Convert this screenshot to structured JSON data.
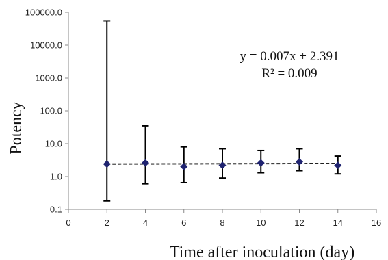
{
  "chart_data": {
    "type": "scatter",
    "xlabel": "Time after inoculation (day)",
    "ylabel": "Potency",
    "xlim": [
      0,
      16
    ],
    "ylim": [
      0.1,
      100000
    ],
    "yscale": "log",
    "x_ticks": [
      "0",
      "2",
      "4",
      "6",
      "8",
      "10",
      "12",
      "14",
      "16"
    ],
    "y_ticks": [
      "0.1",
      "1.0",
      "10.0",
      "100.0",
      "1000.0",
      "10000.0",
      "100000.0"
    ],
    "grid": false,
    "annotations": [
      "y = 0.007x + 2.391",
      "R² = 0.009"
    ],
    "marker_color": "#1f2370",
    "series": [
      {
        "x": [
          2,
          4,
          6,
          8,
          10,
          12,
          14
        ],
        "y": [
          2.4,
          2.6,
          2.0,
          2.2,
          2.6,
          2.8,
          2.2
        ],
        "y_lower": [
          0.18,
          0.6,
          0.65,
          0.9,
          1.3,
          1.5,
          1.2
        ],
        "y_upper": [
          55000,
          35,
          8,
          7,
          6.2,
          7,
          4.2
        ]
      }
    ],
    "trendline": {
      "slope": 0.007,
      "intercept": 2.391,
      "style": "dashed"
    }
  }
}
